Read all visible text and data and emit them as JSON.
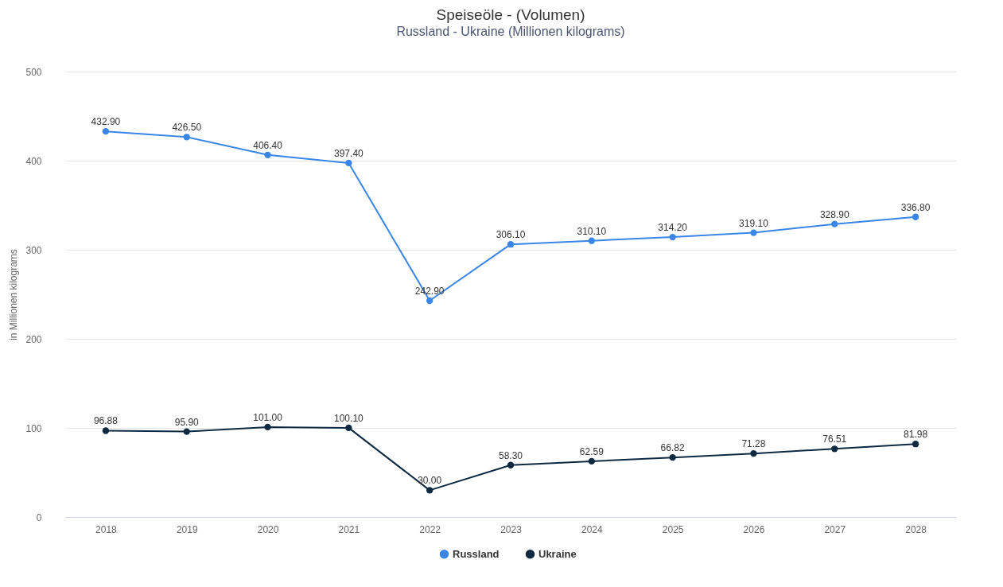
{
  "chart_data": {
    "type": "line",
    "title": "Speiseöle - (Volumen)",
    "subtitle": "Russland - Ukraine (Millionen kilograms)",
    "ylabel": "in Millionen kilograms",
    "categories": [
      "2018",
      "2019",
      "2020",
      "2021",
      "2022",
      "2023",
      "2024",
      "2025",
      "2026",
      "2027",
      "2028"
    ],
    "series": [
      {
        "name": "Russland",
        "color": "#3a86e6",
        "values": [
          432.9,
          426.5,
          406.4,
          397.4,
          242.9,
          306.1,
          310.1,
          314.2,
          319.1,
          328.9,
          336.8
        ],
        "value_labels": [
          "432.90",
          "426.50",
          "406.40",
          "397.40",
          "242.90",
          "306.10",
          "310.10",
          "314.20",
          "319.10",
          "328.90",
          "336.80"
        ]
      },
      {
        "name": "Ukraine",
        "color": "#0e2a42",
        "values": [
          96.88,
          95.9,
          101.0,
          100.1,
          30.0,
          58.3,
          62.59,
          66.82,
          71.28,
          76.51,
          81.98
        ],
        "value_labels": [
          "96.88",
          "95.90",
          "101.00",
          "100.10",
          "30.00",
          "58.30",
          "62.59",
          "66.82",
          "71.28",
          "76.51",
          "81.98"
        ]
      }
    ],
    "ylim": [
      0,
      500
    ],
    "yticks": [
      0,
      100,
      200,
      300,
      400,
      500
    ],
    "grid": "y",
    "legend": "bottom",
    "marker": "circle",
    "line_style": "solid"
  }
}
